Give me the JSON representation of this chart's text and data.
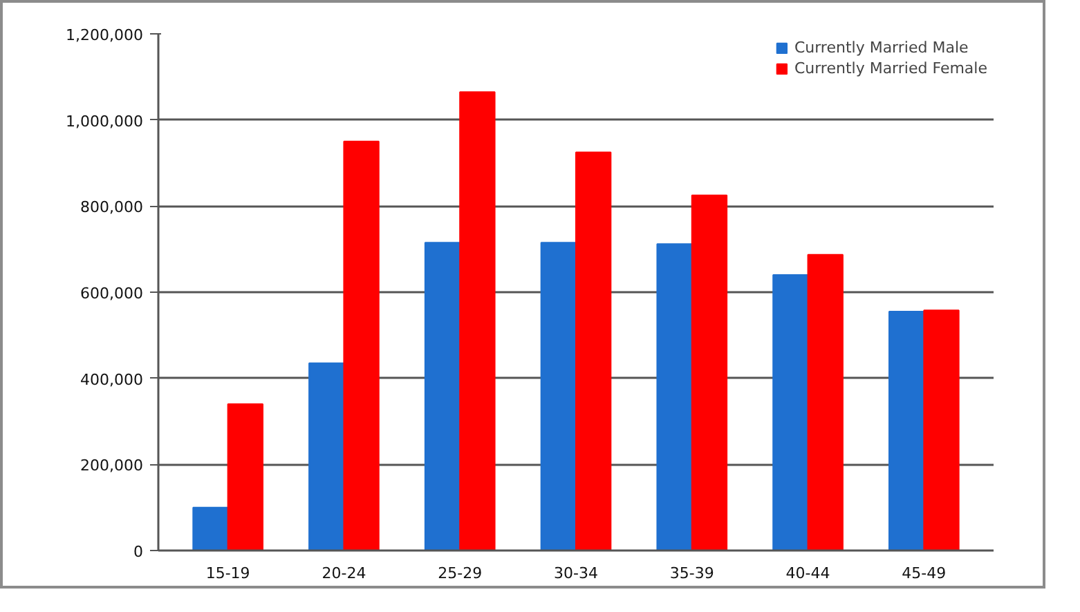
{
  "chart_data": {
    "type": "bar",
    "categories": [
      "15-19",
      "20-24",
      "25-29",
      "30-34",
      "35-39",
      "40-44",
      "45-49"
    ],
    "series": [
      {
        "name": "Currently Married Male",
        "color": "#1f70d0",
        "values": [
          100000,
          435000,
          715000,
          715000,
          712000,
          640000,
          555000
        ]
      },
      {
        "name": "Currently Married Female",
        "color": "#ff0000",
        "values": [
          340000,
          950000,
          1065000,
          925000,
          825000,
          687000,
          558000
        ]
      }
    ],
    "ylim": [
      0,
      1200000
    ],
    "yticks": [
      0,
      {
        "value": 200000,
        "label": "200,000"
      },
      {
        "value": 400000,
        "label": "400,000"
      },
      {
        "value": 600000,
        "label": "600,000"
      },
      {
        "value": 800000,
        "label": "800,000"
      },
      {
        "value": 1000000,
        "label": "1,000,000"
      },
      {
        "value": 1200000,
        "label": "1,200,000"
      }
    ],
    "grid": "y",
    "legend": "top right"
  }
}
